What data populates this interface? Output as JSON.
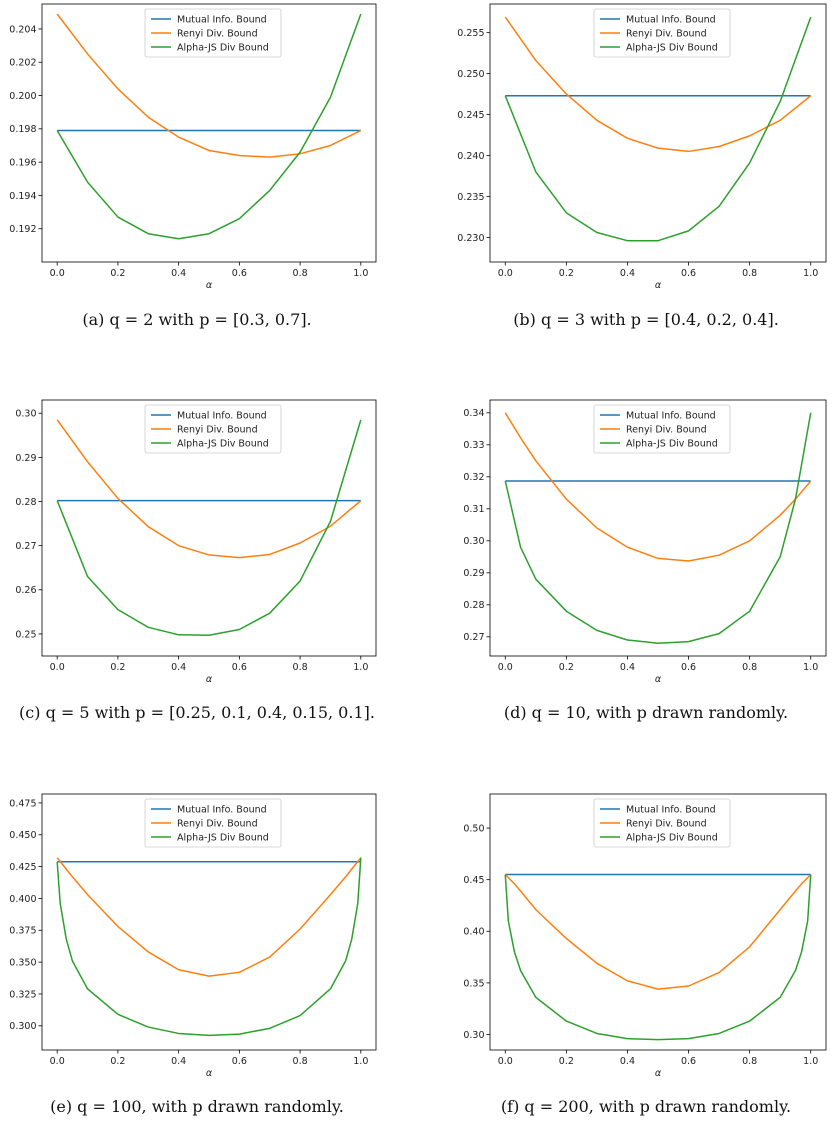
{
  "chart_data": [
    {
      "type": "line",
      "caption": "(a) q = 2 with p = [0.3, 0.7].",
      "xlabel": "α",
      "xlim": [
        -0.05,
        1.05
      ],
      "ylim": [
        0.19,
        0.2055
      ],
      "xticks": [
        0.0,
        0.2,
        0.4,
        0.6,
        0.8,
        1.0
      ],
      "xtick_labels": [
        "0.0",
        "0.2",
        "0.4",
        "0.6",
        "0.8",
        "1.0"
      ],
      "yticks": [
        0.192,
        0.194,
        0.196,
        0.198,
        0.2,
        0.202,
        0.204
      ],
      "ytick_labels": [
        "0.192",
        "0.194",
        "0.196",
        "0.198",
        "0.200",
        "0.202",
        "0.204"
      ],
      "legend_position": "top-center",
      "x": [
        0.0,
        0.1,
        0.2,
        0.3,
        0.4,
        0.5,
        0.6,
        0.7,
        0.8,
        0.9,
        1.0
      ],
      "series": [
        {
          "name": "Mutual Info. Bound",
          "color": "#1f77b4",
          "values": [
            0.1979,
            0.1979,
            0.1979,
            0.1979,
            0.1979,
            0.1979,
            0.1979,
            0.1979,
            0.1979,
            0.1979,
            0.1979
          ]
        },
        {
          "name": "Renyi Div. Bound",
          "color": "#ff7f0e",
          "values": [
            0.2049,
            0.2025,
            0.2004,
            0.1987,
            0.1975,
            0.1967,
            0.1964,
            0.1963,
            0.1965,
            0.197,
            0.1979
          ]
        },
        {
          "name": "Alpha-JS Div Bound",
          "color": "#2ca02c",
          "values": [
            0.1979,
            0.1948,
            0.1927,
            0.1917,
            0.1914,
            0.1917,
            0.1926,
            0.1943,
            0.1966,
            0.1999,
            0.2049
          ]
        }
      ]
    },
    {
      "type": "line",
      "caption": "(b) q = 3 with p = [0.4, 0.2, 0.4].",
      "xlabel": "α",
      "xlim": [
        -0.05,
        1.05
      ],
      "ylim": [
        0.227,
        0.2585
      ],
      "xticks": [
        0.0,
        0.2,
        0.4,
        0.6,
        0.8,
        1.0
      ],
      "xtick_labels": [
        "0.0",
        "0.2",
        "0.4",
        "0.6",
        "0.8",
        "1.0"
      ],
      "yticks": [
        0.23,
        0.235,
        0.24,
        0.245,
        0.25,
        0.255
      ],
      "ytick_labels": [
        "0.230",
        "0.235",
        "0.240",
        "0.245",
        "0.250",
        "0.255"
      ],
      "legend_position": "top-center",
      "x": [
        0.0,
        0.1,
        0.2,
        0.3,
        0.4,
        0.5,
        0.6,
        0.7,
        0.8,
        0.9,
        1.0
      ],
      "series": [
        {
          "name": "Mutual Info. Bound",
          "color": "#1f77b4",
          "values": [
            0.2473,
            0.2473,
            0.2473,
            0.2473,
            0.2473,
            0.2473,
            0.2473,
            0.2473,
            0.2473,
            0.2473,
            0.2473
          ]
        },
        {
          "name": "Renyi Div. Bound",
          "color": "#ff7f0e",
          "values": [
            0.2569,
            0.2516,
            0.2475,
            0.2443,
            0.2421,
            0.2409,
            0.2405,
            0.2411,
            0.2424,
            0.2443,
            0.2473
          ]
        },
        {
          "name": "Alpha-JS Div Bound",
          "color": "#2ca02c",
          "values": [
            0.2473,
            0.238,
            0.233,
            0.2306,
            0.2296,
            0.2296,
            0.2308,
            0.2338,
            0.2391,
            0.2466,
            0.2569
          ]
        }
      ]
    },
    {
      "type": "line",
      "caption": "(c) q = 5 with p = [0.25, 0.1, 0.4, 0.15, 0.1].",
      "xlabel": "α",
      "xlim": [
        -0.05,
        1.05
      ],
      "ylim": [
        0.245,
        0.303
      ],
      "xticks": [
        0.0,
        0.2,
        0.4,
        0.6,
        0.8,
        1.0
      ],
      "xtick_labels": [
        "0.0",
        "0.2",
        "0.4",
        "0.6",
        "0.8",
        "1.0"
      ],
      "yticks": [
        0.25,
        0.26,
        0.27,
        0.28,
        0.29,
        0.3
      ],
      "ytick_labels": [
        "0.25",
        "0.26",
        "0.27",
        "0.28",
        "0.29",
        "0.30"
      ],
      "legend_position": "top-center",
      "x": [
        0.0,
        0.1,
        0.2,
        0.3,
        0.4,
        0.5,
        0.6,
        0.7,
        0.8,
        0.9,
        1.0
      ],
      "series": [
        {
          "name": "Mutual Info. Bound",
          "color": "#1f77b4",
          "values": [
            0.2802,
            0.2802,
            0.2802,
            0.2802,
            0.2802,
            0.2802,
            0.2802,
            0.2802,
            0.2802,
            0.2802,
            0.2802
          ]
        },
        {
          "name": "Renyi Div. Bound",
          "color": "#ff7f0e",
          "values": [
            0.2985,
            0.289,
            0.2807,
            0.2743,
            0.27,
            0.2679,
            0.2673,
            0.268,
            0.2706,
            0.2744,
            0.2802
          ]
        },
        {
          "name": "Alpha-JS Div Bound",
          "color": "#2ca02c",
          "values": [
            0.2802,
            0.263,
            0.2555,
            0.2515,
            0.2498,
            0.2497,
            0.251,
            0.2547,
            0.262,
            0.2755,
            0.2985
          ]
        }
      ]
    },
    {
      "type": "line",
      "caption": "(d) q = 10, with p drawn randomly.",
      "xlabel": "α",
      "xlim": [
        -0.05,
        1.05
      ],
      "ylim": [
        0.264,
        0.344
      ],
      "xticks": [
        0.0,
        0.2,
        0.4,
        0.6,
        0.8,
        1.0
      ],
      "xtick_labels": [
        "0.0",
        "0.2",
        "0.4",
        "0.6",
        "0.8",
        "1.0"
      ],
      "yticks": [
        0.27,
        0.28,
        0.29,
        0.3,
        0.31,
        0.32,
        0.33,
        0.34
      ],
      "ytick_labels": [
        "0.27",
        "0.28",
        "0.29",
        "0.30",
        "0.31",
        "0.32",
        "0.33",
        "0.34"
      ],
      "legend_position": "top-center",
      "x": [
        0.0,
        0.05,
        0.1,
        0.2,
        0.3,
        0.4,
        0.5,
        0.6,
        0.7,
        0.8,
        0.9,
        0.95,
        1.0
      ],
      "series": [
        {
          "name": "Mutual Info. Bound",
          "color": "#1f77b4",
          "values": [
            0.3187,
            0.3187,
            0.3187,
            0.3187,
            0.3187,
            0.3187,
            0.3187,
            0.3187,
            0.3187,
            0.3187,
            0.3187,
            0.3187,
            0.3187
          ]
        },
        {
          "name": "Renyi Div. Bound",
          "color": "#ff7f0e",
          "values": [
            0.34,
            0.3322,
            0.325,
            0.313,
            0.304,
            0.298,
            0.2945,
            0.2937,
            0.2955,
            0.3,
            0.308,
            0.313,
            0.3187
          ]
        },
        {
          "name": "Alpha-JS Div Bound",
          "color": "#2ca02c",
          "values": [
            0.3187,
            0.298,
            0.288,
            0.278,
            0.272,
            0.269,
            0.268,
            0.2685,
            0.271,
            0.278,
            0.295,
            0.313,
            0.34
          ]
        }
      ]
    },
    {
      "type": "line",
      "caption": "(e) q = 100, with p drawn randomly.",
      "xlabel": "α",
      "xlim": [
        -0.05,
        1.05
      ],
      "ylim": [
        0.281,
        0.482
      ],
      "xticks": [
        0.0,
        0.2,
        0.4,
        0.6,
        0.8,
        1.0
      ],
      "xtick_labels": [
        "0.0",
        "0.2",
        "0.4",
        "0.6",
        "0.8",
        "1.0"
      ],
      "yticks": [
        0.3,
        0.325,
        0.35,
        0.375,
        0.4,
        0.425,
        0.45,
        0.475
      ],
      "ytick_labels": [
        "0.300",
        "0.325",
        "0.350",
        "0.375",
        "0.400",
        "0.425",
        "0.450",
        "0.475"
      ],
      "legend_position": "top-center",
      "x": [
        0.0,
        0.01,
        0.03,
        0.05,
        0.1,
        0.2,
        0.3,
        0.4,
        0.5,
        0.6,
        0.7,
        0.8,
        0.9,
        0.95,
        0.97,
        0.99,
        1.0
      ],
      "series": [
        {
          "name": "Mutual Info. Bound",
          "color": "#1f77b4",
          "values": [
            0.4288,
            0.4288,
            0.4288,
            0.4288,
            0.4288,
            0.4288,
            0.4288,
            0.4288,
            0.4288,
            0.4288,
            0.4288,
            0.4288,
            0.4288,
            0.4288,
            0.4288,
            0.4288,
            0.4288
          ]
        },
        {
          "name": "Renyi Div. Bound",
          "color": "#ff7f0e",
          "values": [
            0.432,
            0.429,
            0.423,
            0.417,
            0.403,
            0.378,
            0.358,
            0.344,
            0.339,
            0.342,
            0.354,
            0.376,
            0.403,
            0.417,
            0.423,
            0.429,
            0.432
          ]
        },
        {
          "name": "Alpha-JS Div Bound",
          "color": "#2ca02c",
          "values": [
            0.4288,
            0.396,
            0.368,
            0.351,
            0.329,
            0.309,
            0.299,
            0.294,
            0.2925,
            0.2935,
            0.298,
            0.308,
            0.329,
            0.351,
            0.368,
            0.396,
            0.432
          ]
        }
      ]
    },
    {
      "type": "line",
      "caption": "(f) q = 200, with p drawn randomly.",
      "xlabel": "α",
      "xlim": [
        -0.05,
        1.05
      ],
      "ylim": [
        0.285,
        0.533
      ],
      "xticks": [
        0.0,
        0.2,
        0.4,
        0.6,
        0.8,
        1.0
      ],
      "xtick_labels": [
        "0.0",
        "0.2",
        "0.4",
        "0.6",
        "0.8",
        "1.0"
      ],
      "yticks": [
        0.3,
        0.35,
        0.4,
        0.45,
        0.5
      ],
      "ytick_labels": [
        "0.30",
        "0.35",
        "0.40",
        "0.45",
        "0.50"
      ],
      "legend_position": "top-center",
      "x": [
        0.0,
        0.01,
        0.03,
        0.05,
        0.1,
        0.2,
        0.3,
        0.4,
        0.5,
        0.6,
        0.7,
        0.8,
        0.9,
        0.95,
        0.97,
        0.99,
        1.0
      ],
      "series": [
        {
          "name": "Mutual Info. Bound",
          "color": "#1f77b4",
          "values": [
            0.455,
            0.455,
            0.455,
            0.455,
            0.455,
            0.455,
            0.455,
            0.455,
            0.455,
            0.455,
            0.455,
            0.455,
            0.455,
            0.455,
            0.455,
            0.455,
            0.455
          ]
        },
        {
          "name": "Renyi Div. Bound",
          "color": "#ff7f0e",
          "values": [
            0.455,
            0.452,
            0.446,
            0.439,
            0.421,
            0.393,
            0.369,
            0.352,
            0.344,
            0.347,
            0.36,
            0.385,
            0.421,
            0.439,
            0.446,
            0.452,
            0.455
          ]
        },
        {
          "name": "Alpha-JS Div Bound",
          "color": "#2ca02c",
          "values": [
            0.455,
            0.41,
            0.38,
            0.362,
            0.336,
            0.313,
            0.301,
            0.296,
            0.295,
            0.296,
            0.301,
            0.313,
            0.336,
            0.362,
            0.38,
            0.41,
            0.455
          ]
        }
      ]
    }
  ]
}
